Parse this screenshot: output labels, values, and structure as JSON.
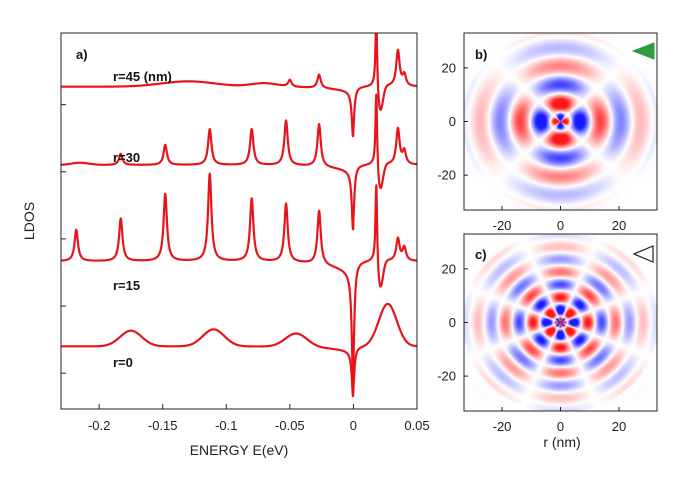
{
  "chart_data": [
    {
      "type": "line",
      "panel_label": "a)",
      "xlabel": "ENERGY E(eV)",
      "ylabel": "LDOS",
      "xlim": [
        -0.23,
        0.05
      ],
      "ylim": [
        -1.4,
        7.0
      ],
      "xticks": [
        -0.2,
        -0.15,
        -0.1,
        -0.05,
        0,
        0.05
      ],
      "xtick_labels": [
        "-0.2",
        "-0.15",
        "-0.1",
        "-0.05",
        "0",
        "0.05"
      ],
      "yticks": [
        -0.6,
        0.9,
        2.4,
        3.9,
        5.4
      ],
      "color": "#e8141b",
      "series": [
        {
          "name": "r=0",
          "label": "r=0",
          "offset": 0.0,
          "peaks": [],
          "bumps": [
            [
              -0.175,
              0.35,
              0.012
            ],
            [
              -0.11,
              0.38,
              0.012
            ],
            [
              -0.045,
              0.3,
              0.012
            ],
            [
              0.027,
              0.95,
              0.01
            ]
          ],
          "dip": 1.0,
          "spike": 0.0
        },
        {
          "name": "r=15",
          "label": "r=15",
          "offset": 1.9,
          "peaks": [
            [
              -0.218,
              0.7
            ],
            [
              -0.183,
              0.95
            ],
            [
              -0.148,
              1.5
            ],
            [
              -0.113,
              1.95
            ],
            [
              -0.08,
              1.4
            ],
            [
              -0.053,
              1.3
            ],
            [
              -0.027,
              1.2
            ],
            [
              0.035,
              0.5
            ],
            [
              0.04,
              0.3
            ]
          ],
          "bumps": [],
          "dip": 2.4,
          "spike": 1.95
        },
        {
          "name": "r=30",
          "label": "r=30",
          "offset": 4.05,
          "peaks": [
            [
              -0.183,
              0.25
            ],
            [
              -0.148,
              0.45
            ],
            [
              -0.113,
              0.8
            ],
            [
              -0.08,
              0.8
            ],
            [
              -0.053,
              1.0
            ],
            [
              -0.027,
              0.95
            ],
            [
              0.035,
              0.8
            ],
            [
              0.04,
              0.3
            ]
          ],
          "bumps": [
            [
              -0.215,
              0.05,
              0.01
            ]
          ],
          "dip": 1.3,
          "spike": 1.8
        },
        {
          "name": "r=45 (nm)",
          "label": "r=45 (nm)",
          "offset": 5.8,
          "peaks": [
            [
              -0.05,
              0.15
            ],
            [
              -0.027,
              0.3
            ],
            [
              0.035,
              0.8
            ],
            [
              0.04,
              0.25
            ]
          ],
          "bumps": [
            [
              -0.13,
              0.12,
              0.03
            ],
            [
              -0.07,
              0.08,
              0.015
            ]
          ],
          "dip": 1.0,
          "spike": 1.8
        }
      ]
    },
    {
      "type": "heatmap",
      "panel_label": "b)",
      "marker": "filled-triangle",
      "marker_color": "#2e9e3e",
      "xlim": [
        -33,
        33
      ],
      "ylim": [
        -33,
        33
      ],
      "xticks": [
        -20,
        0,
        20
      ],
      "yticks": [
        -20,
        0,
        20
      ],
      "xtick_labels": [
        "-20",
        "0",
        "20"
      ],
      "ytick_labels": [
        "-20",
        "0",
        "20"
      ],
      "angular_order": 2,
      "radial_wavelength": 14,
      "envelope_radius": 32
    },
    {
      "type": "heatmap",
      "panel_label": "c)",
      "marker": "open-triangle",
      "marker_color": "#222222",
      "xlim": [
        -33,
        33
      ],
      "ylim": [
        -33,
        33
      ],
      "xticks": [
        -20,
        0,
        20
      ],
      "yticks": [
        -20,
        0,
        20
      ],
      "xtick_labels": [
        "-20",
        "0",
        "20"
      ],
      "ytick_labels": [
        "-20",
        "0",
        "20"
      ],
      "xlabel": "r (nm)",
      "angular_order": 4,
      "radial_wavelength": 9.5,
      "envelope_radius": 32
    }
  ]
}
